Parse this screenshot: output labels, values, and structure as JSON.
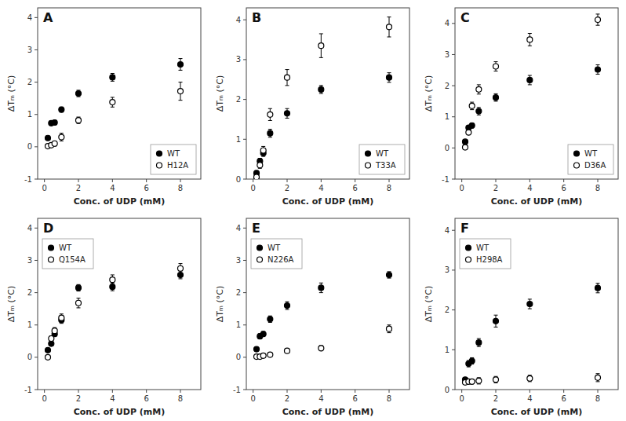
{
  "chart_data": [
    {
      "type": "scatter",
      "title": "A",
      "x_label": "Conc. of UDP (mM)",
      "y_label": "ΔTₘ (°C)",
      "xlim": [
        -0.4,
        9.2
      ],
      "xticks": [
        0,
        2,
        4,
        6,
        8
      ],
      "ylim": [
        -1,
        4.3
      ],
      "yticks": [
        -1,
        0,
        1,
        2,
        3,
        4
      ],
      "grid": false,
      "legend": "lower right",
      "series": [
        {
          "name": "WT",
          "color": "#000000",
          "marker": "filled-circle",
          "x": [
            0.2,
            0.4,
            0.6,
            1.0,
            2.0,
            4.0,
            8.0
          ],
          "values": [
            0.27,
            0.73,
            0.75,
            1.15,
            1.65,
            2.15,
            2.55
          ],
          "errors": [
            0.06,
            0.07,
            0.07,
            0.08,
            0.1,
            0.12,
            0.18
          ]
        },
        {
          "name": "H12A",
          "color": "#000000",
          "marker": "open-circle",
          "x": [
            0.2,
            0.4,
            0.6,
            1.0,
            2.0,
            4.0,
            8.0
          ],
          "values": [
            0.02,
            0.05,
            0.1,
            0.3,
            0.82,
            1.38,
            1.72
          ],
          "errors": [
            0.04,
            0.05,
            0.08,
            0.12,
            0.1,
            0.15,
            0.28
          ]
        }
      ]
    },
    {
      "type": "scatter",
      "title": "B",
      "x_label": "Conc. of UDP (mM)",
      "y_label": "ΔTₘ (°C)",
      "xlim": [
        -0.4,
        9.2
      ],
      "xticks": [
        0,
        2,
        4,
        6,
        8
      ],
      "ylim": [
        0,
        4.3
      ],
      "yticks": [
        0,
        1,
        2,
        3,
        4
      ],
      "grid": false,
      "legend": "lower right",
      "series": [
        {
          "name": "WT",
          "color": "#000000",
          "marker": "filled-circle",
          "x": [
            0.2,
            0.4,
            0.6,
            1.0,
            2.0,
            4.0,
            8.0
          ],
          "values": [
            0.15,
            0.45,
            0.65,
            1.15,
            1.65,
            2.25,
            2.55
          ],
          "errors": [
            0.06,
            0.07,
            0.08,
            0.1,
            0.12,
            0.1,
            0.12
          ]
        },
        {
          "name": "T33A",
          "color": "#000000",
          "marker": "open-circle",
          "x": [
            0.2,
            0.4,
            0.6,
            1.0,
            2.0,
            4.0,
            8.0
          ],
          "values": [
            0.05,
            0.35,
            0.72,
            1.62,
            2.55,
            3.35,
            3.82
          ],
          "errors": [
            0.05,
            0.08,
            0.1,
            0.15,
            0.2,
            0.3,
            0.25
          ]
        }
      ]
    },
    {
      "type": "scatter",
      "title": "C",
      "x_label": "Conc. of UDP (mM)",
      "y_label": "ΔTₘ (°C)",
      "xlim": [
        -0.4,
        9.2
      ],
      "xticks": [
        0,
        2,
        4,
        6,
        8
      ],
      "ylim": [
        -1,
        4.5
      ],
      "yticks": [
        -1,
        0,
        1,
        2,
        3,
        4
      ],
      "grid": false,
      "legend": "lower right",
      "series": [
        {
          "name": "WT",
          "color": "#000000",
          "marker": "filled-circle",
          "x": [
            0.2,
            0.4,
            0.6,
            1.0,
            2.0,
            4.0,
            8.0
          ],
          "values": [
            0.2,
            0.65,
            0.72,
            1.18,
            1.62,
            2.18,
            2.52
          ],
          "errors": [
            0.05,
            0.07,
            0.08,
            0.12,
            0.12,
            0.15,
            0.15
          ]
        },
        {
          "name": "D36A",
          "color": "#000000",
          "marker": "open-circle",
          "x": [
            0.2,
            0.4,
            0.6,
            1.0,
            2.0,
            4.0,
            8.0
          ],
          "values": [
            0.02,
            0.5,
            1.35,
            1.88,
            2.62,
            3.48,
            4.12
          ],
          "errors": [
            0.05,
            0.08,
            0.12,
            0.15,
            0.15,
            0.2,
            0.18
          ]
        }
      ]
    },
    {
      "type": "scatter",
      "title": "D",
      "x_label": "Conc. of UDP (mM)",
      "y_label": "ΔTₘ (°C)",
      "xlim": [
        -0.4,
        9.2
      ],
      "xticks": [
        0,
        2,
        4,
        6,
        8
      ],
      "ylim": [
        -1,
        4.3
      ],
      "yticks": [
        -1,
        0,
        1,
        2,
        3,
        4
      ],
      "grid": false,
      "legend": "upper left",
      "series": [
        {
          "name": "WT",
          "color": "#000000",
          "marker": "filled-circle",
          "x": [
            0.2,
            0.4,
            0.6,
            1.0,
            2.0,
            4.0,
            8.0
          ],
          "values": [
            0.22,
            0.42,
            0.72,
            1.15,
            2.15,
            2.18,
            2.55
          ],
          "errors": [
            0.05,
            0.06,
            0.08,
            0.1,
            0.1,
            0.12,
            0.12
          ]
        },
        {
          "name": "Q154A",
          "color": "#000000",
          "marker": "open-circle",
          "x": [
            0.2,
            0.4,
            0.6,
            1.0,
            2.0,
            4.0,
            8.0
          ],
          "values": [
            0.0,
            0.58,
            0.82,
            1.22,
            1.68,
            2.4,
            2.75
          ],
          "errors": [
            0.05,
            0.08,
            0.1,
            0.12,
            0.15,
            0.15,
            0.15
          ]
        }
      ]
    },
    {
      "type": "scatter",
      "title": "E",
      "x_label": "Conc. of UDP (mM)",
      "y_label": "ΔTₘ (°C)",
      "xlim": [
        -0.4,
        9.2
      ],
      "xticks": [
        0,
        2,
        4,
        6,
        8
      ],
      "ylim": [
        -1,
        4.3
      ],
      "yticks": [
        -1,
        0,
        1,
        2,
        3,
        4
      ],
      "grid": false,
      "legend": "upper left",
      "series": [
        {
          "name": "WT",
          "color": "#000000",
          "marker": "filled-circle",
          "x": [
            0.2,
            0.4,
            0.6,
            1.0,
            2.0,
            4.0,
            8.0
          ],
          "values": [
            0.25,
            0.65,
            0.72,
            1.18,
            1.6,
            2.15,
            2.55
          ],
          "errors": [
            0.05,
            0.08,
            0.08,
            0.1,
            0.12,
            0.15,
            0.1
          ]
        },
        {
          "name": "N226A",
          "color": "#000000",
          "marker": "open-circle",
          "x": [
            0.2,
            0.4,
            0.6,
            1.0,
            2.0,
            4.0,
            8.0
          ],
          "values": [
            0.02,
            0.02,
            0.05,
            0.08,
            0.2,
            0.28,
            0.88
          ],
          "errors": [
            0.04,
            0.04,
            0.05,
            0.05,
            0.06,
            0.08,
            0.12
          ]
        }
      ]
    },
    {
      "type": "scatter",
      "title": "F",
      "x_label": "Conc. of UDP (mM)",
      "y_label": "ΔTₘ (°C)",
      "xlim": [
        -0.4,
        9.2
      ],
      "xticks": [
        0,
        2,
        4,
        6,
        8
      ],
      "ylim": [
        0,
        4.3
      ],
      "yticks": [
        0,
        1,
        2,
        3,
        4
      ],
      "grid": false,
      "legend": "upper left",
      "series": [
        {
          "name": "WT",
          "color": "#000000",
          "marker": "filled-circle",
          "x": [
            0.2,
            0.4,
            0.6,
            1.0,
            2.0,
            4.0,
            8.0
          ],
          "values": [
            0.25,
            0.65,
            0.72,
            1.18,
            1.72,
            2.15,
            2.55
          ],
          "errors": [
            0.05,
            0.08,
            0.08,
            0.1,
            0.15,
            0.12,
            0.12
          ]
        },
        {
          "name": "H298A",
          "color": "#000000",
          "marker": "open-circle",
          "x": [
            0.2,
            0.4,
            0.6,
            1.0,
            2.0,
            4.0,
            8.0
          ],
          "values": [
            0.18,
            0.2,
            0.2,
            0.22,
            0.25,
            0.28,
            0.3
          ],
          "errors": [
            0.05,
            0.06,
            0.06,
            0.08,
            0.08,
            0.08,
            0.1
          ]
        }
      ]
    }
  ]
}
